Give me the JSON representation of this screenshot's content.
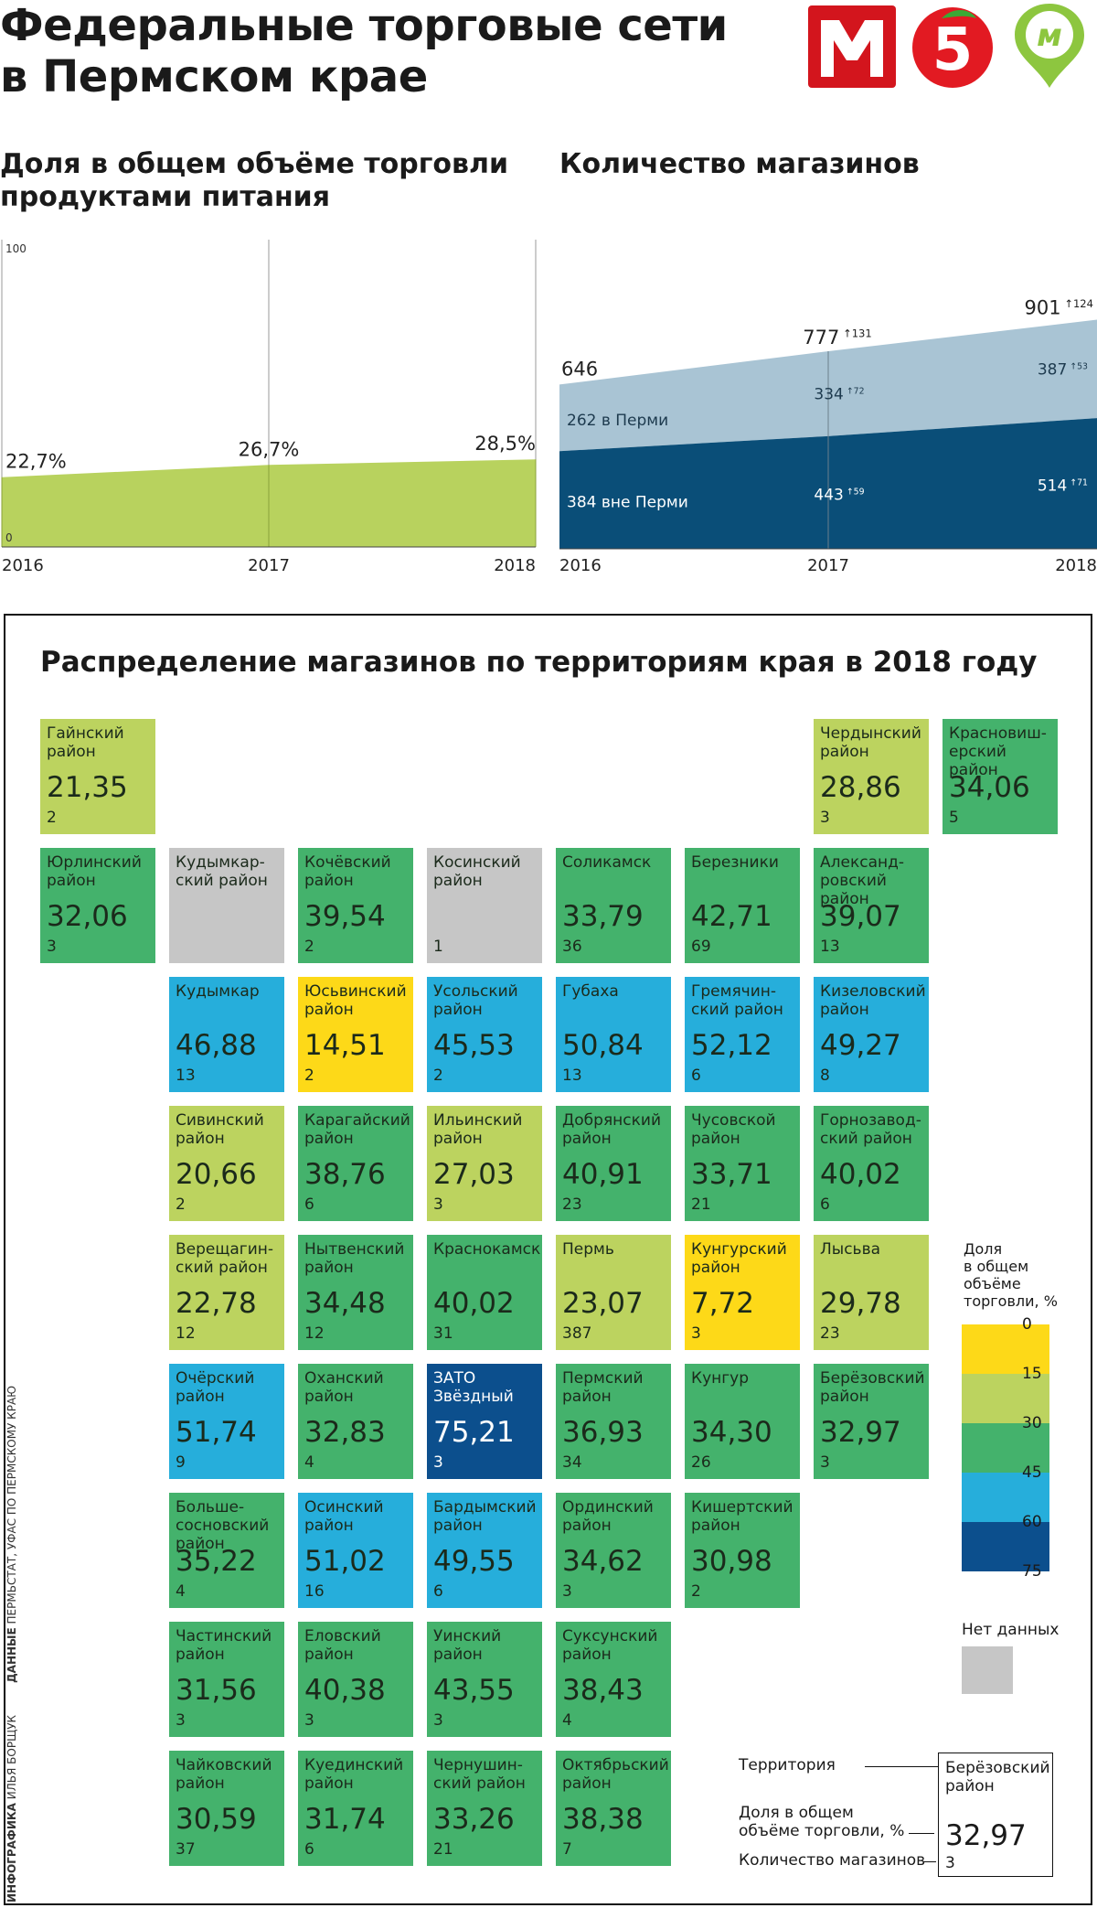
{
  "header": {
    "title_line1": "Федеральные торговые сети",
    "title_line2": "в Пермском крае",
    "logos": [
      {
        "icon": "magnit-logo-icon",
        "color": "#d3151d"
      },
      {
        "icon": "pyaterochka-logo-icon",
        "color": "#e21a22"
      },
      {
        "icon": "monetka-logo-icon",
        "color": "#8dc63f"
      }
    ]
  },
  "share_section": {
    "title_line1": "Доля в общем объёме торговли",
    "title_line2": "продуктами питания"
  },
  "stores_section": {
    "title": "Количество магазинов"
  },
  "chart_data": [
    {
      "type": "area",
      "title": "Доля в общем объёме торговли продуктами питания",
      "x": [
        "2016",
        "2017",
        "2018"
      ],
      "series": [
        {
          "name": "Доля, %",
          "values": [
            22.7,
            26.7,
            28.5
          ],
          "labels": [
            "22,7%",
            "26,7%",
            "28,5%"
          ],
          "color": "#b8d25e"
        }
      ],
      "ylim": [
        0,
        100
      ],
      "ytick_labels": [
        "0",
        "100"
      ],
      "grid": true
    },
    {
      "type": "area",
      "title": "Количество магазинов",
      "x": [
        "2016",
        "2017",
        "2018"
      ],
      "stacked": true,
      "totals": [
        646,
        777,
        901
      ],
      "total_labels": [
        "646",
        "777",
        "901"
      ],
      "total_increments": [
        "",
        "131",
        "124"
      ],
      "series": [
        {
          "name": "вне Перми",
          "values": [
            384,
            443,
            514
          ],
          "labels": [
            "384 вне Перми",
            "443",
            "514"
          ],
          "increments": [
            "",
            "59",
            "71"
          ],
          "color": "#0a4e78"
        },
        {
          "name": "в Перми",
          "values": [
            262,
            334,
            387
          ],
          "labels": [
            "262 в Перми",
            "334",
            "387"
          ],
          "increments": [
            "",
            "72",
            "53"
          ],
          "color": "#a9c4d4"
        }
      ],
      "ylim": [
        0,
        1000
      ]
    },
    {
      "type": "heatmap",
      "title": "Распределение магазинов по территориям края в 2018 году",
      "value_name": "Доля в общем объёме торговли, %",
      "cells": [
        {
          "name": "Гайнский\nрайон",
          "share": "21,35",
          "count": "2",
          "value": 21.35,
          "row": 0,
          "col": 0
        },
        {
          "name": "Чердынский\nрайон",
          "share": "28,86",
          "count": "3",
          "value": 28.86,
          "row": 0,
          "col": 6
        },
        {
          "name": "Красновиш-\nерский\nрайон",
          "share": "34,06",
          "count": "5",
          "value": 34.06,
          "row": 0,
          "col": 7
        },
        {
          "name": "Юрлинский\nрайон",
          "share": "32,06",
          "count": "3",
          "value": 32.06,
          "row": 1,
          "col": 0
        },
        {
          "name": "Кудымкар-\nский район",
          "share": "",
          "count": "",
          "value": null,
          "row": 1,
          "col": 1
        },
        {
          "name": "Кочёвский\nрайон",
          "share": "39,54",
          "count": "2",
          "value": 39.54,
          "row": 1,
          "col": 2
        },
        {
          "name": "Косинский\nрайон",
          "share": "",
          "count": "1",
          "value": null,
          "row": 1,
          "col": 3
        },
        {
          "name": "Соликамск",
          "share": "33,79",
          "count": "36",
          "value": 33.79,
          "row": 1,
          "col": 4
        },
        {
          "name": "Березники",
          "share": "42,71",
          "count": "69",
          "value": 42.71,
          "row": 1,
          "col": 5
        },
        {
          "name": "Александ-\nровский\nрайон",
          "share": "39,07",
          "count": "13",
          "value": 39.07,
          "row": 1,
          "col": 6
        },
        {
          "name": "Кудымкар",
          "share": "46,88",
          "count": "13",
          "value": 46.88,
          "row": 2,
          "col": 1
        },
        {
          "name": "Юсьвинский\nрайон",
          "share": "14,51",
          "count": "2",
          "value": 14.51,
          "row": 2,
          "col": 2
        },
        {
          "name": "Усольский\nрайон",
          "share": "45,53",
          "count": "2",
          "value": 45.53,
          "row": 2,
          "col": 3
        },
        {
          "name": "Губаха",
          "share": "50,84",
          "count": "13",
          "value": 50.84,
          "row": 2,
          "col": 4
        },
        {
          "name": "Гремячин-\nский район",
          "share": "52,12",
          "count": "6",
          "value": 52.12,
          "row": 2,
          "col": 5
        },
        {
          "name": "Кизеловский\nрайон",
          "share": "49,27",
          "count": "8",
          "value": 49.27,
          "row": 2,
          "col": 6
        },
        {
          "name": "Сивинский\nрайон",
          "share": "20,66",
          "count": "2",
          "value": 20.66,
          "row": 3,
          "col": 1
        },
        {
          "name": "Карагайский\nрайон",
          "share": "38,76",
          "count": "6",
          "value": 38.76,
          "row": 3,
          "col": 2
        },
        {
          "name": "Ильинский\nрайон",
          "share": "27,03",
          "count": "3",
          "value": 27.03,
          "row": 3,
          "col": 3
        },
        {
          "name": "Добрянский\nрайон",
          "share": "40,91",
          "count": "23",
          "value": 40.91,
          "row": 3,
          "col": 4
        },
        {
          "name": "Чусовской\nрайон",
          "share": "33,71",
          "count": "21",
          "value": 33.71,
          "row": 3,
          "col": 5
        },
        {
          "name": "Горнозавод-\nский район",
          "share": "40,02",
          "count": "6",
          "value": 40.02,
          "row": 3,
          "col": 6
        },
        {
          "name": "Верещагин-\nский район",
          "share": "22,78",
          "count": "12",
          "value": 22.78,
          "row": 4,
          "col": 1
        },
        {
          "name": "Нытвенский\nрайон",
          "share": "34,48",
          "count": "12",
          "value": 34.48,
          "row": 4,
          "col": 2
        },
        {
          "name": "Краснокамск",
          "share": "40,02",
          "count": "31",
          "value": 40.02,
          "row": 4,
          "col": 3
        },
        {
          "name": "Пермь",
          "share": "23,07",
          "count": "387",
          "value": 23.07,
          "row": 4,
          "col": 4
        },
        {
          "name": "Кунгурский\nрайон",
          "share": "7,72",
          "count": "3",
          "value": 7.72,
          "row": 4,
          "col": 5
        },
        {
          "name": "Лысьва",
          "share": "29,78",
          "count": "23",
          "value": 29.78,
          "row": 4,
          "col": 6
        },
        {
          "name": "Очёрский\nрайон",
          "share": "51,74",
          "count": "9",
          "value": 51.74,
          "row": 5,
          "col": 1
        },
        {
          "name": "Оханский\nрайон",
          "share": "32,83",
          "count": "4",
          "value": 32.83,
          "row": 5,
          "col": 2
        },
        {
          "name": "ЗАТО\nЗвёздный",
          "share": "75,21",
          "count": "3",
          "value": 75.21,
          "row": 5,
          "col": 3
        },
        {
          "name": "Пермский\nрайон",
          "share": "36,93",
          "count": "34",
          "value": 36.93,
          "row": 5,
          "col": 4
        },
        {
          "name": "Кунгур",
          "share": "34,30",
          "count": "26",
          "value": 34.3,
          "row": 5,
          "col": 5
        },
        {
          "name": "Берёзовский\nрайон",
          "share": "32,97",
          "count": "3",
          "value": 32.97,
          "row": 5,
          "col": 6
        },
        {
          "name": "Больше-\nсосновский\nрайон",
          "share": "35,22",
          "count": "4",
          "value": 35.22,
          "row": 6,
          "col": 1
        },
        {
          "name": "Осинский\nрайон",
          "share": "51,02",
          "count": "16",
          "value": 51.02,
          "row": 6,
          "col": 2
        },
        {
          "name": "Бардымский\nрайон",
          "share": "49,55",
          "count": "6",
          "value": 49.55,
          "row": 6,
          "col": 3
        },
        {
          "name": "Ординский\nрайон",
          "share": "34,62",
          "count": "3",
          "value": 34.62,
          "row": 6,
          "col": 4
        },
        {
          "name": "Кишертский\nрайон",
          "share": "30,98",
          "count": "2",
          "value": 30.98,
          "row": 6,
          "col": 5
        },
        {
          "name": "Частинский\nрайон",
          "share": "31,56",
          "count": "3",
          "value": 31.56,
          "row": 7,
          "col": 1
        },
        {
          "name": "Еловский\nрайон",
          "share": "40,38",
          "count": "3",
          "value": 40.38,
          "row": 7,
          "col": 2
        },
        {
          "name": "Уинский\nрайон",
          "share": "43,55",
          "count": "3",
          "value": 43.55,
          "row": 7,
          "col": 3
        },
        {
          "name": "Суксунский\nрайон",
          "share": "38,43",
          "count": "4",
          "value": 38.43,
          "row": 7,
          "col": 4
        },
        {
          "name": "Чайковский\nрайон",
          "share": "30,59",
          "count": "37",
          "value": 30.59,
          "row": 8,
          "col": 1
        },
        {
          "name": "Куединский\nрайон",
          "share": "31,74",
          "count": "6",
          "value": 31.74,
          "row": 8,
          "col": 2
        },
        {
          "name": "Чернушин-\nский район",
          "share": "33,26",
          "count": "21",
          "value": 33.26,
          "row": 8,
          "col": 3
        },
        {
          "name": "Октябрьский\nрайон",
          "share": "38,38",
          "count": "7",
          "value": 38.38,
          "row": 8,
          "col": 4
        }
      ]
    }
  ],
  "legend": {
    "title": "Доля\nв общем\nобъёме\nторговли, %",
    "bins": [
      {
        "min": 0,
        "max": 15,
        "color": "#fdd918"
      },
      {
        "min": 15,
        "max": 30,
        "color": "#bcd35f"
      },
      {
        "min": 30,
        "max": 45,
        "color": "#44b26c"
      },
      {
        "min": 45,
        "max": 60,
        "color": "#26aedb"
      },
      {
        "min": 60,
        "max": 75,
        "color": "#0c4f8d"
      }
    ],
    "ticks": [
      "0",
      "15",
      "30",
      "45",
      "60",
      "75"
    ],
    "no_data_label": "Нет данных",
    "no_data_color": "#c6c6c6"
  },
  "key": {
    "territory_label": "Территория",
    "share_label": "Доля в общем\nобъёме торговли, %",
    "count_label": "Количество магазинов",
    "example_name": "Берёзовский\nрайон",
    "example_share": "32,97",
    "example_count": "3"
  },
  "credits": {
    "infographics_label": "ИНФОГРАФИКА",
    "infographics_author": "ИЛЬЯ БОРЩУК",
    "data_label": "ДАННЫЕ",
    "data_source": "ПЕРМЬСТАТ, УФАС ПО ПЕРМСКОМУ КРАЮ"
  }
}
